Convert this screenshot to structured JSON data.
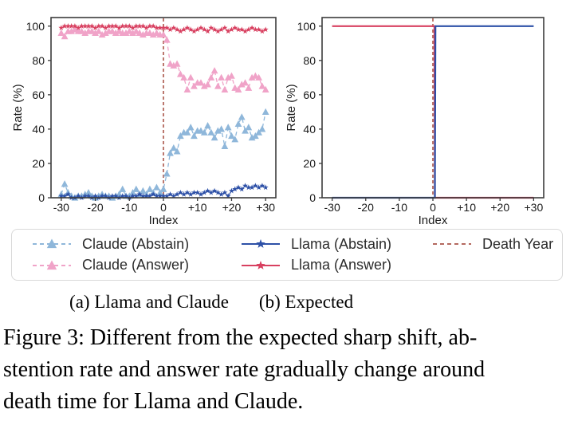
{
  "figure": {
    "subcaption_a": "(a) Llama and Claude",
    "subcaption_b": "(b) Expected",
    "caption_lines": [
      "Figure 3: Different from the expected sharp shift, ab-",
      "stention rate and answer rate gradually change around",
      "death time for Llama and Claude."
    ]
  },
  "colors": {
    "claude_abstain": "#8fb7da",
    "claude_answer": "#f0a3c8",
    "llama_abstain": "#2d50a7",
    "llama_answer": "#d84060",
    "death_year": "#b4695f",
    "spine": "#3c3c3c",
    "tick_text": "#1a1a1a"
  },
  "legend": {
    "entries": [
      {
        "label": "Claude (Abstain)",
        "color": "#8fb7da",
        "line": "dashed",
        "marker": "triangle"
      },
      {
        "label": "Claude (Answer)",
        "color": "#f0a3c8",
        "line": "dashed",
        "marker": "triangle"
      },
      {
        "label": "Llama (Abstain)",
        "color": "#2d50a7",
        "line": "solid",
        "marker": "star"
      },
      {
        "label": "Llama (Answer)",
        "color": "#d84060",
        "line": "solid",
        "marker": "star"
      },
      {
        "label": "Death Year",
        "color": "#b4695f",
        "line": "dashed",
        "marker": "none"
      }
    ]
  },
  "chart_data": [
    {
      "type": "line",
      "title": "",
      "xlabel": "Index",
      "ylabel": "Rate (%)",
      "xlim": [
        -33,
        33
      ],
      "ylim": [
        0,
        105
      ],
      "grid": false,
      "xticks": {
        "values": [
          -30,
          -20,
          -10,
          0,
          10,
          20,
          30
        ],
        "labels": [
          "-30",
          "-20",
          "-10",
          "0",
          "+10",
          "+20",
          "+30"
        ]
      },
      "yticks": [
        0,
        20,
        40,
        60,
        80,
        100
      ],
      "x": [
        -30,
        -29,
        -28,
        -27,
        -26,
        -25,
        -24,
        -23,
        -22,
        -21,
        -20,
        -19,
        -18,
        -17,
        -16,
        -15,
        -14,
        -13,
        -12,
        -11,
        -10,
        -9,
        -8,
        -7,
        -6,
        -5,
        -4,
        -3,
        -2,
        -1,
        0,
        1,
        2,
        3,
        4,
        5,
        6,
        7,
        8,
        9,
        10,
        11,
        12,
        13,
        14,
        15,
        16,
        17,
        18,
        19,
        20,
        21,
        22,
        23,
        24,
        25,
        26,
        27,
        28,
        29,
        30
      ],
      "series": [
        {
          "name": "Claude (Abstain)",
          "color": "#8fb7da",
          "line": "dashed",
          "marker": "triangle",
          "width": 1.3,
          "values": [
            2,
            8,
            3,
            1,
            0,
            1,
            1,
            2,
            3,
            1,
            0,
            1,
            2,
            1,
            1,
            0,
            1,
            2,
            5,
            1,
            1,
            3,
            5,
            2,
            4,
            2,
            5,
            3,
            6,
            3,
            5,
            14,
            26,
            29,
            27,
            36,
            38,
            38,
            41,
            36,
            39,
            39,
            38,
            42,
            38,
            35,
            39,
            40,
            30,
            41,
            36,
            34,
            43,
            47,
            39,
            41,
            35,
            36,
            38,
            40,
            50
          ]
        },
        {
          "name": "Claude (Answer)",
          "color": "#f0a3c8",
          "line": "dashed",
          "marker": "triangle",
          "width": 1.3,
          "values": [
            96,
            94,
            97,
            97,
            98,
            97,
            97,
            96,
            97,
            97,
            96,
            97,
            95,
            96,
            97,
            97,
            96,
            97,
            96,
            96,
            97,
            96,
            97,
            96,
            95,
            96,
            96,
            95,
            96,
            95,
            95,
            92,
            78,
            77,
            78,
            72,
            70,
            63,
            70,
            65,
            67,
            67,
            65,
            66,
            70,
            74,
            65,
            70,
            63,
            70,
            71,
            64,
            63,
            66,
            67,
            64,
            70,
            71,
            70,
            65,
            63
          ]
        },
        {
          "name": "Llama (Abstain)",
          "color": "#2d50a7",
          "line": "solid",
          "marker": "star",
          "width": 1.1,
          "values": [
            1,
            1,
            2,
            0,
            0,
            1,
            0,
            1,
            1,
            0,
            1,
            0,
            1,
            1,
            0,
            1,
            1,
            0,
            1,
            1,
            0,
            1,
            1,
            2,
            1,
            1,
            1,
            2,
            1,
            1,
            1,
            1,
            2,
            1,
            2,
            3,
            2,
            3,
            2,
            3,
            3,
            2,
            3,
            4,
            3,
            4,
            3,
            2,
            3,
            1,
            4,
            5,
            6,
            5,
            7,
            6,
            6,
            7,
            6,
            7,
            6
          ]
        },
        {
          "name": "Llama (Answer)",
          "color": "#d84060",
          "line": "solid",
          "marker": "star",
          "width": 1.1,
          "values": [
            99,
            100,
            100,
            100,
            100,
            99,
            100,
            100,
            100,
            100,
            99,
            100,
            100,
            99,
            100,
            100,
            100,
            99,
            100,
            100,
            100,
            99,
            100,
            100,
            100,
            99,
            100,
            100,
            99,
            99,
            99,
            99,
            98,
            99,
            98,
            97,
            98,
            99,
            98,
            97,
            98,
            99,
            98,
            97,
            99,
            98,
            97,
            98,
            99,
            97,
            98,
            99,
            98,
            98,
            97,
            98,
            99,
            98,
            98,
            97,
            98
          ]
        }
      ],
      "vline": {
        "x": 0,
        "color": "#b4695f",
        "style": "dashed",
        "name": "Death Year"
      }
    },
    {
      "type": "line",
      "title": "",
      "xlabel": "Index",
      "ylabel": "Rate (%)",
      "xlim": [
        -33,
        33
      ],
      "ylim": [
        0,
        105
      ],
      "grid": false,
      "xticks": {
        "values": [
          -30,
          -20,
          -10,
          0,
          10,
          20,
          30
        ],
        "labels": [
          "-30",
          "-20",
          "-10",
          "0",
          "+10",
          "+20",
          "+30"
        ]
      },
      "yticks": [
        0,
        20,
        40,
        60,
        80,
        100
      ],
      "series": [
        {
          "name": "Llama (Answer)",
          "color": "#d84060",
          "line": "solid",
          "marker": "none",
          "width": 2.2,
          "x": [
            -30,
            0.45,
            0.6,
            30
          ],
          "values": [
            100,
            100,
            0,
            0
          ]
        },
        {
          "name": "Llama (Abstain)",
          "color": "#2d50a7",
          "line": "solid",
          "marker": "none",
          "width": 2.2,
          "x": [
            -30,
            0.6,
            0.75,
            30
          ],
          "values": [
            0,
            0,
            100,
            100
          ]
        }
      ],
      "vline": {
        "x": 0,
        "color": "#b4695f",
        "style": "dashed",
        "name": "Death Year"
      }
    }
  ]
}
